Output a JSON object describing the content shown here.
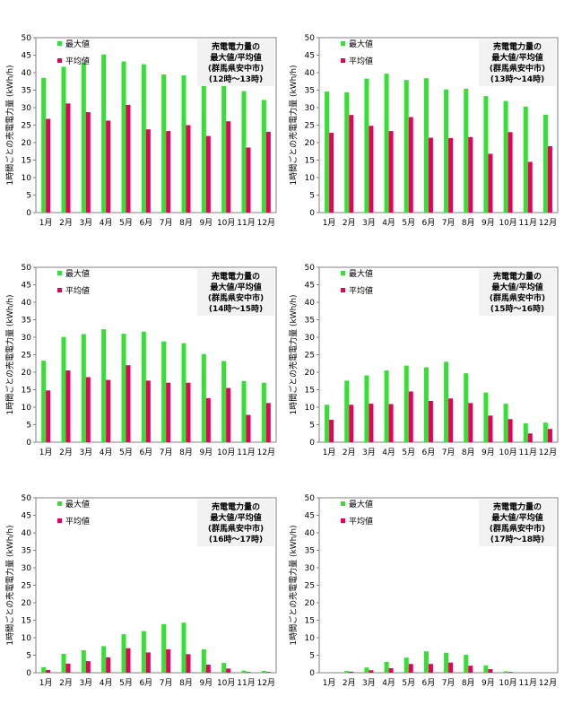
{
  "chart_data": [
    {
      "type": "bar",
      "title": [
        "売電電力量の",
        "最大値/平均値",
        "(群馬県安中市)",
        "(12時〜13時)"
      ],
      "ylabel": "1時間ごとの売電電力量 (kWh/h)",
      "categories": [
        "1月",
        "2月",
        "3月",
        "4月",
        "5月",
        "6月",
        "7月",
        "8月",
        "9月",
        "10月",
        "11月",
        "12月"
      ],
      "ylim": [
        0,
        50
      ],
      "yticks": [
        0,
        5,
        10,
        15,
        20,
        25,
        30,
        35,
        40,
        45,
        50
      ],
      "legend_position": "top-left",
      "series": [
        {
          "name": "最大値",
          "color": "#33e033",
          "values": [
            38.5,
            41.7,
            42.8,
            45.2,
            43.2,
            42.4,
            39.5,
            39.2,
            37.1,
            38.6,
            34.7,
            32.2
          ]
        },
        {
          "name": "平均値",
          "color": "#e8005c",
          "values": [
            26.8,
            31.2,
            28.7,
            26.3,
            30.8,
            23.8,
            23.3,
            25.0,
            21.9,
            26.1,
            18.6,
            23.1
          ]
        }
      ]
    },
    {
      "type": "bar",
      "title": [
        "売電電力量の",
        "最大値/平均値",
        "(群馬県安中市)",
        "(13時〜14時)"
      ],
      "ylabel": "1時間ごとの売電電力量 (kWh/h)",
      "categories": [
        "1月",
        "2月",
        "3月",
        "4月",
        "5月",
        "6月",
        "7月",
        "8月",
        "9月",
        "10月",
        "11月",
        "12月"
      ],
      "ylim": [
        0,
        50
      ],
      "yticks": [
        0,
        5,
        10,
        15,
        20,
        25,
        30,
        35,
        40,
        45,
        50
      ],
      "legend_position": "top-left",
      "series": [
        {
          "name": "最大値",
          "color": "#33e033",
          "values": [
            34.6,
            34.4,
            38.3,
            39.7,
            37.9,
            38.4,
            35.2,
            35.4,
            33.3,
            31.9,
            30.3,
            28.0
          ]
        },
        {
          "name": "平均値",
          "color": "#e8005c",
          "values": [
            22.8,
            27.9,
            24.8,
            23.3,
            27.3,
            21.4,
            21.3,
            21.6,
            16.8,
            23.0,
            14.5,
            19.0
          ]
        }
      ]
    },
    {
      "type": "bar",
      "title": [
        "売電電力量の",
        "最大値/平均値",
        "(群馬県安中市)",
        "(14時〜15時)"
      ],
      "ylabel": "1時間ごとの売電電力量 (kWh/h)",
      "categories": [
        "1月",
        "2月",
        "3月",
        "4月",
        "5月",
        "6月",
        "7月",
        "8月",
        "9月",
        "10月",
        "11月",
        "12月"
      ],
      "ylim": [
        0,
        50
      ],
      "yticks": [
        0,
        5,
        10,
        15,
        20,
        25,
        30,
        35,
        40,
        45,
        50
      ],
      "legend_position": "top-left",
      "series": [
        {
          "name": "最大値",
          "color": "#33e033",
          "values": [
            23.3,
            30.1,
            30.9,
            32.3,
            31.0,
            31.6,
            28.8,
            28.3,
            25.2,
            23.2,
            17.5,
            17.0
          ]
        },
        {
          "name": "平均値",
          "color": "#e8005c",
          "values": [
            14.8,
            20.5,
            18.6,
            17.8,
            22.0,
            17.6,
            17.0,
            17.0,
            12.6,
            15.5,
            7.8,
            11.2
          ]
        }
      ]
    },
    {
      "type": "bar",
      "title": [
        "売電電力量の",
        "最大値/平均値",
        "(群馬県安中市)",
        "(15時〜16時)"
      ],
      "ylabel": "1時間ごとの売電電力量 (kWh/h)",
      "categories": [
        "1月",
        "2月",
        "3月",
        "4月",
        "5月",
        "6月",
        "7月",
        "8月",
        "9月",
        "10月",
        "11月",
        "12月"
      ],
      "ylim": [
        0,
        50
      ],
      "yticks": [
        0,
        5,
        10,
        15,
        20,
        25,
        30,
        35,
        40,
        45,
        50
      ],
      "legend_position": "top-left",
      "series": [
        {
          "name": "最大値",
          "color": "#33e033",
          "values": [
            10.7,
            17.6,
            19.1,
            20.5,
            21.9,
            21.4,
            23.0,
            19.7,
            14.2,
            11.0,
            5.4,
            5.6
          ]
        },
        {
          "name": "平均値",
          "color": "#e8005c",
          "values": [
            6.4,
            10.7,
            11.0,
            10.9,
            14.5,
            11.8,
            12.5,
            11.2,
            7.6,
            6.6,
            2.5,
            3.8
          ]
        }
      ]
    },
    {
      "type": "bar",
      "title": [
        "売電電力量の",
        "最大値/平均値",
        "(群馬県安中市)",
        "(16時〜17時)"
      ],
      "ylabel": "1時間ごとの売電電力量 (kWh/h)",
      "categories": [
        "1月",
        "2月",
        "3月",
        "4月",
        "5月",
        "6月",
        "7月",
        "8月",
        "9月",
        "10月",
        "11月",
        "12月"
      ],
      "ylim": [
        0,
        50
      ],
      "yticks": [
        0,
        5,
        10,
        15,
        20,
        25,
        30,
        35,
        40,
        45,
        50
      ],
      "legend_position": "top-left",
      "series": [
        {
          "name": "最大値",
          "color": "#33e033",
          "values": [
            1.6,
            5.4,
            6.4,
            7.6,
            11.0,
            11.9,
            13.9,
            14.3,
            6.7,
            2.8,
            0.6,
            0.5
          ]
        },
        {
          "name": "平均値",
          "color": "#e8005c",
          "values": [
            0.8,
            2.6,
            3.3,
            4.4,
            7.0,
            5.8,
            6.7,
            5.3,
            2.3,
            1.2,
            0.2,
            0.2
          ]
        }
      ]
    },
    {
      "type": "bar",
      "title": [
        "売電電力量の",
        "最大値/平均値",
        "(群馬県安中市)",
        "(17時〜18時)"
      ],
      "ylabel": "1時間ごとの売電電力量 (kWh/h)",
      "categories": [
        "1月",
        "2月",
        "3月",
        "4月",
        "5月",
        "6月",
        "7月",
        "8月",
        "9月",
        "10月",
        "11月",
        "12月"
      ],
      "ylim": [
        0,
        50
      ],
      "yticks": [
        0,
        5,
        10,
        15,
        20,
        25,
        30,
        35,
        40,
        45,
        50
      ],
      "legend_position": "top-left",
      "series": [
        {
          "name": "最大値",
          "color": "#33e033",
          "values": [
            0.0,
            0.5,
            1.5,
            3.1,
            4.3,
            6.1,
            5.7,
            5.1,
            2.1,
            0.4,
            0.0,
            0.0
          ]
        },
        {
          "name": "平均値",
          "color": "#e8005c",
          "values": [
            0.0,
            0.3,
            0.7,
            1.3,
            2.5,
            2.5,
            2.9,
            2.0,
            1.0,
            0.2,
            0.0,
            0.0
          ]
        }
      ]
    }
  ]
}
